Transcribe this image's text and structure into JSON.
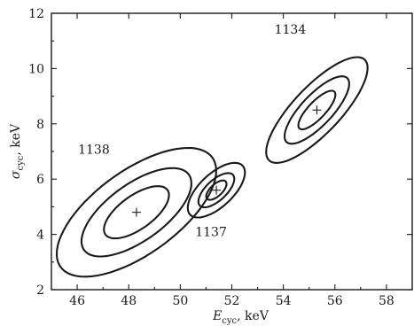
{
  "chart_data": {
    "type": "contour",
    "xlabel": "E",
    "xlabel_sub": "cyc",
    "xlabel_unit": ", keV",
    "ylabel": "σ",
    "ylabel_sub": "cyc",
    "ylabel_unit": ", keV",
    "xlim": [
      45,
      59
    ],
    "ylim": [
      2,
      12
    ],
    "xticks": [
      46,
      48,
      50,
      52,
      54,
      56,
      58
    ],
    "yticks": [
      2,
      4,
      6,
      8,
      10,
      12
    ],
    "grid": false,
    "peaks": [
      {
        "label": "1138",
        "center": [
          48.3,
          4.8
        ],
        "angle_deg": 33,
        "contours": [
          [
            1.45,
            0.62
          ],
          [
            2.45,
            1.05
          ],
          [
            3.55,
            1.55
          ]
        ]
      },
      {
        "label": "1137",
        "center": [
          51.4,
          5.6
        ],
        "angle_deg": 40,
        "contours": [
          [
            0.48,
            0.22
          ],
          [
            0.85,
            0.38
          ],
          [
            1.35,
            0.62
          ]
        ]
      },
      {
        "label": "1134",
        "center": [
          55.3,
          8.5
        ],
        "angle_deg": 44,
        "contours": [
          [
            0.95,
            0.32
          ],
          [
            1.65,
            0.58
          ],
          [
            2.6,
            0.88
          ]
        ]
      }
    ]
  }
}
